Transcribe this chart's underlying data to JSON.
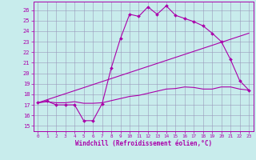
{
  "background_color": "#c8ecec",
  "grid_color": "#9999bb",
  "line_color": "#aa00aa",
  "xlim": [
    -0.5,
    23.5
  ],
  "ylim": [
    14.5,
    26.8
  ],
  "yticks": [
    15,
    16,
    17,
    18,
    19,
    20,
    21,
    22,
    23,
    24,
    25,
    26
  ],
  "xticks": [
    0,
    1,
    2,
    3,
    4,
    5,
    6,
    7,
    8,
    9,
    10,
    11,
    12,
    13,
    14,
    15,
    16,
    17,
    18,
    19,
    20,
    21,
    22,
    23
  ],
  "xlabel": "Windchill (Refroidissement éolien,°C)",
  "curve1_x": [
    0,
    1,
    2,
    3,
    4,
    5,
    6,
    7,
    8,
    9,
    10,
    11,
    12,
    13,
    14,
    15,
    16,
    17,
    18,
    19,
    20,
    21,
    22,
    23
  ],
  "curve1_y": [
    17.2,
    17.35,
    17.0,
    17.0,
    17.0,
    15.5,
    15.5,
    17.1,
    20.5,
    23.3,
    25.6,
    25.4,
    26.3,
    25.6,
    26.4,
    25.5,
    25.2,
    24.9,
    24.5,
    23.8,
    23.0,
    21.3,
    19.3,
    18.4
  ],
  "curve2_x": [
    0,
    1,
    2,
    3,
    4,
    5,
    6,
    7,
    8,
    9,
    10,
    11,
    12,
    13,
    14,
    15,
    16,
    17,
    18,
    19,
    20,
    21,
    22,
    23
  ],
  "curve2_y": [
    17.2,
    17.3,
    17.2,
    17.2,
    17.3,
    17.15,
    17.15,
    17.2,
    17.4,
    17.6,
    17.8,
    17.9,
    18.1,
    18.3,
    18.5,
    18.55,
    18.7,
    18.65,
    18.5,
    18.5,
    18.7,
    18.7,
    18.5,
    18.4
  ],
  "curve3_x": [
    0,
    23
  ],
  "curve3_y": [
    17.2,
    23.8
  ]
}
